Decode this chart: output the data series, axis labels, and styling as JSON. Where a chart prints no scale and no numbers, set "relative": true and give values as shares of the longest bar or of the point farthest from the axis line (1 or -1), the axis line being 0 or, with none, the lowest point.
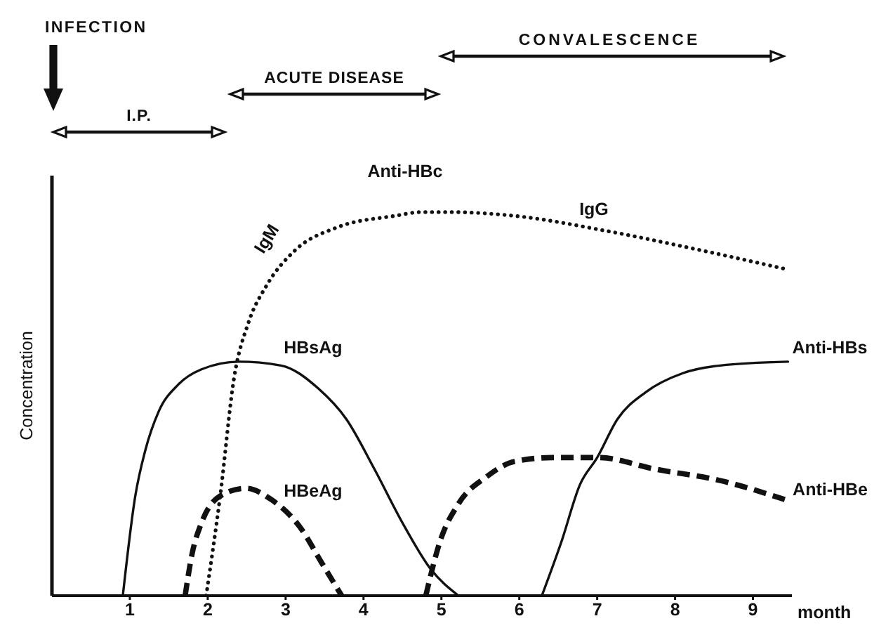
{
  "chart_data": {
    "type": "line",
    "relative": true,
    "xlabel": "month",
    "ylabel": "Concentration",
    "xlim": [
      0,
      9.5
    ],
    "xticks": [
      1,
      2,
      3,
      4,
      5,
      6,
      7,
      8,
      9
    ],
    "tick_labels": "x",
    "series": [
      {
        "name": "HBsAg",
        "color": "#111111",
        "line_style": "solid",
        "x": [
          0.91,
          1.07,
          1.2,
          1.37,
          1.62,
          1.92,
          2.4,
          2.94,
          3.42,
          3.78,
          4.14,
          4.5,
          4.86,
          5.22
        ],
        "values": [
          0,
          0.26,
          0.38,
          0.48,
          0.55,
          0.59,
          0.61,
          0.6,
          0.54,
          0.46,
          0.33,
          0.19,
          0.07,
          0
        ]
      },
      {
        "name": "HBeAg",
        "color": "#111111",
        "line_style": "dashed",
        "x": [
          1.71,
          1.8,
          1.92,
          2.16,
          2.49,
          2.82,
          3.18,
          3.48,
          3.72
        ],
        "values": [
          0,
          0.11,
          0.19,
          0.26,
          0.28,
          0.25,
          0.18,
          0.08,
          0
        ]
      },
      {
        "name": "Anti-HBc",
        "color": "#111111",
        "line_style": "dotted",
        "x": [
          1.98,
          2.16,
          2.34,
          2.52,
          2.76,
          3.12,
          3.66,
          4.4,
          4.75,
          5.1,
          5.94,
          7.14,
          8.34,
          9.45
        ],
        "values": [
          0,
          0.26,
          0.57,
          0.71,
          0.81,
          0.9,
          0.96,
          0.99,
          1,
          1,
          0.99,
          0.95,
          0.9,
          0.85
        ]
      },
      {
        "name": "Anti-HBs",
        "color": "#111111",
        "line_style": "solid",
        "x": [
          6.29,
          6.54,
          6.78,
          7.0,
          7.26,
          7.62,
          8.1,
          8.58,
          9.45
        ],
        "values": [
          0,
          0.14,
          0.29,
          0.36,
          0.46,
          0.53,
          0.58,
          0.6,
          0.61
        ]
      },
      {
        "name": "Anti-HBe",
        "color": "#111111",
        "line_style": "dashed",
        "x": [
          4.8,
          4.98,
          5.22,
          5.58,
          5.94,
          6.42,
          7.02,
          7.74,
          8.58,
          9.42
        ],
        "values": [
          0,
          0.14,
          0.24,
          0.31,
          0.35,
          0.36,
          0.36,
          0.33,
          0.3,
          0.25
        ]
      }
    ],
    "annotations": [
      "INFECTION",
      "I.P.",
      "ACUTE DISEASE",
      "CONVALESCENCE",
      "IgM",
      "IgG"
    ]
  }
}
